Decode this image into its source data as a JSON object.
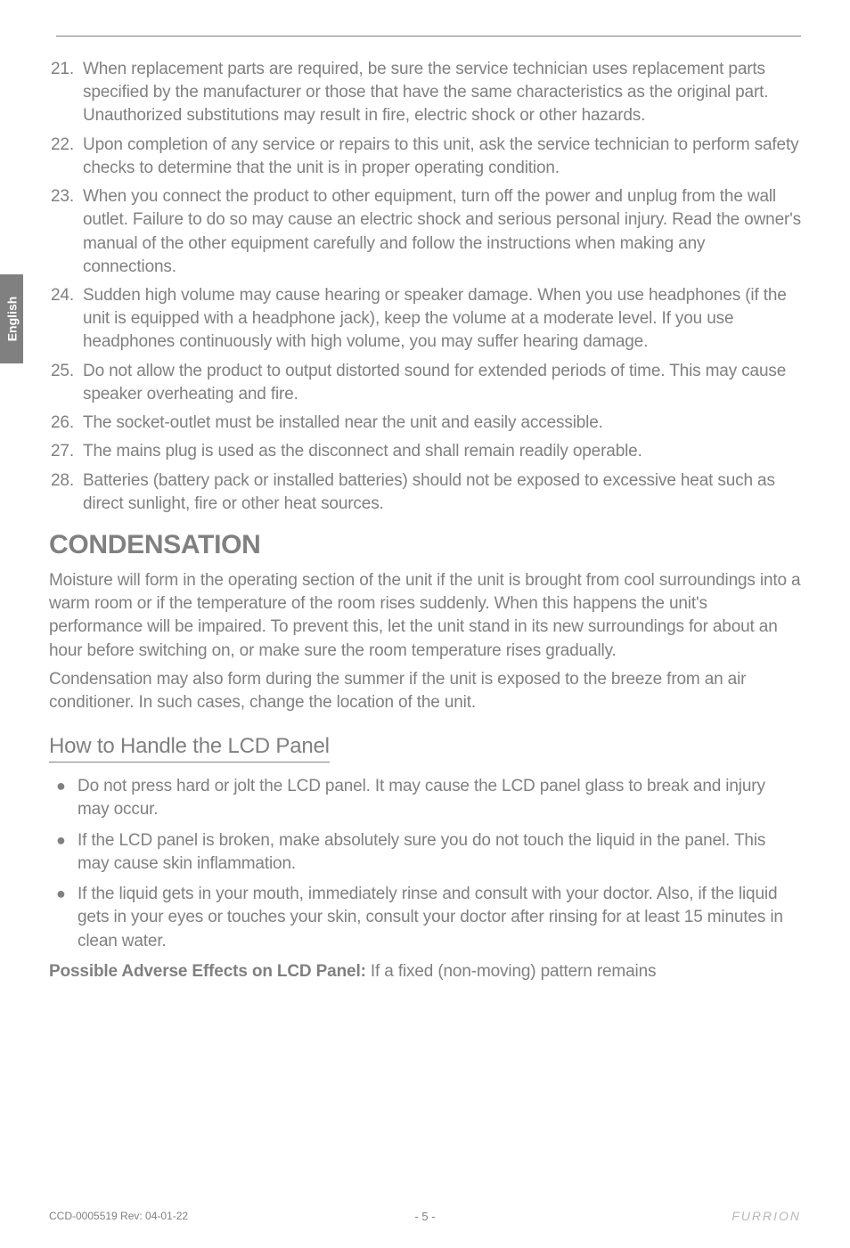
{
  "colors": {
    "text": "#808080",
    "background": "#ffffff",
    "tab_bg": "#808080",
    "tab_text": "#ffffff",
    "rule": "#808080",
    "brand": "#b8b8b8"
  },
  "typography": {
    "body_fontsize": 19,
    "body_lineheight": 1.38,
    "h2_fontsize": 30,
    "h3_fontsize": 24,
    "footer_fontsize": 12
  },
  "tab": {
    "label": "English"
  },
  "numbered": [
    {
      "n": "21.",
      "text": "When replacement parts are required, be sure the service technician uses replacement parts specified by the manufacturer or those that have the same characteristics as the original part. Unauthorized substitutions may result in fire, electric shock or other hazards."
    },
    {
      "n": "22.",
      "text": "Upon completion of any service or repairs to this unit, ask the service technician to perform safety checks to determine that the unit is in proper operating condition."
    },
    {
      "n": "23.",
      "text": "When you connect the product to other equipment, turn off the power and unplug from the wall outlet. Failure to do so may cause an electric shock and serious personal injury. Read the owner's manual of the other equipment carefully and follow the instructions when making any connections."
    },
    {
      "n": "24.",
      "text": "Sudden high volume may cause hearing or speaker damage. When you use headphones (if the unit is equipped with a headphone jack), keep the volume at a moderate level. If you use headphones continuously with high volume, you may suffer hearing damage."
    },
    {
      "n": "25.",
      "text": "Do not allow the product to output distorted sound for extended periods of time. This may cause speaker overheating and fire."
    },
    {
      "n": "26.",
      "text": "The socket-outlet must be installed near the unit and easily accessible."
    },
    {
      "n": "27.",
      "text": "The mains plug is used as the disconnect and shall remain readily operable."
    },
    {
      "n": "28.",
      "text": "Batteries (battery pack or installed batteries) should not be exposed to excessive heat such as direct sunlight, fire or other heat sources."
    }
  ],
  "section_title": "CONDENSATION",
  "paragraphs": [
    "Moisture will form in the operating section of the unit if the unit is brought from cool surroundings into a warm room or if the temperature of the room rises suddenly. When this happens the unit's performance will be impaired. To prevent this, let the unit stand in its new surroundings for about an hour before switching on, or make sure the room temperature rises gradually.",
    "Condensation may also form during the summer if the unit is exposed to the breeze from an air conditioner. In such cases, change the location of the unit."
  ],
  "subheading": "How to Handle the LCD Panel",
  "bullets": [
    "Do not press hard or jolt the LCD panel. It may cause the LCD panel glass to break and injury may occur.",
    "If the LCD panel is broken, make absolutely sure you do not touch the liquid in the panel. This may cause skin inflammation.",
    "If the liquid gets in your mouth, immediately rinse and consult with your doctor. Also, if the liquid gets in your eyes or touches your skin, consult your doctor after rinsing for at least 15 minutes in clean water."
  ],
  "bold_line": {
    "lead": "Possible Adverse Effects on LCD Panel: ",
    "rest": "If a fixed (non-moving) pattern remains"
  },
  "footer": {
    "left": "CCD-0005519 Rev: 04-01-22",
    "center": "- 5 -",
    "brand": "FURRION"
  }
}
